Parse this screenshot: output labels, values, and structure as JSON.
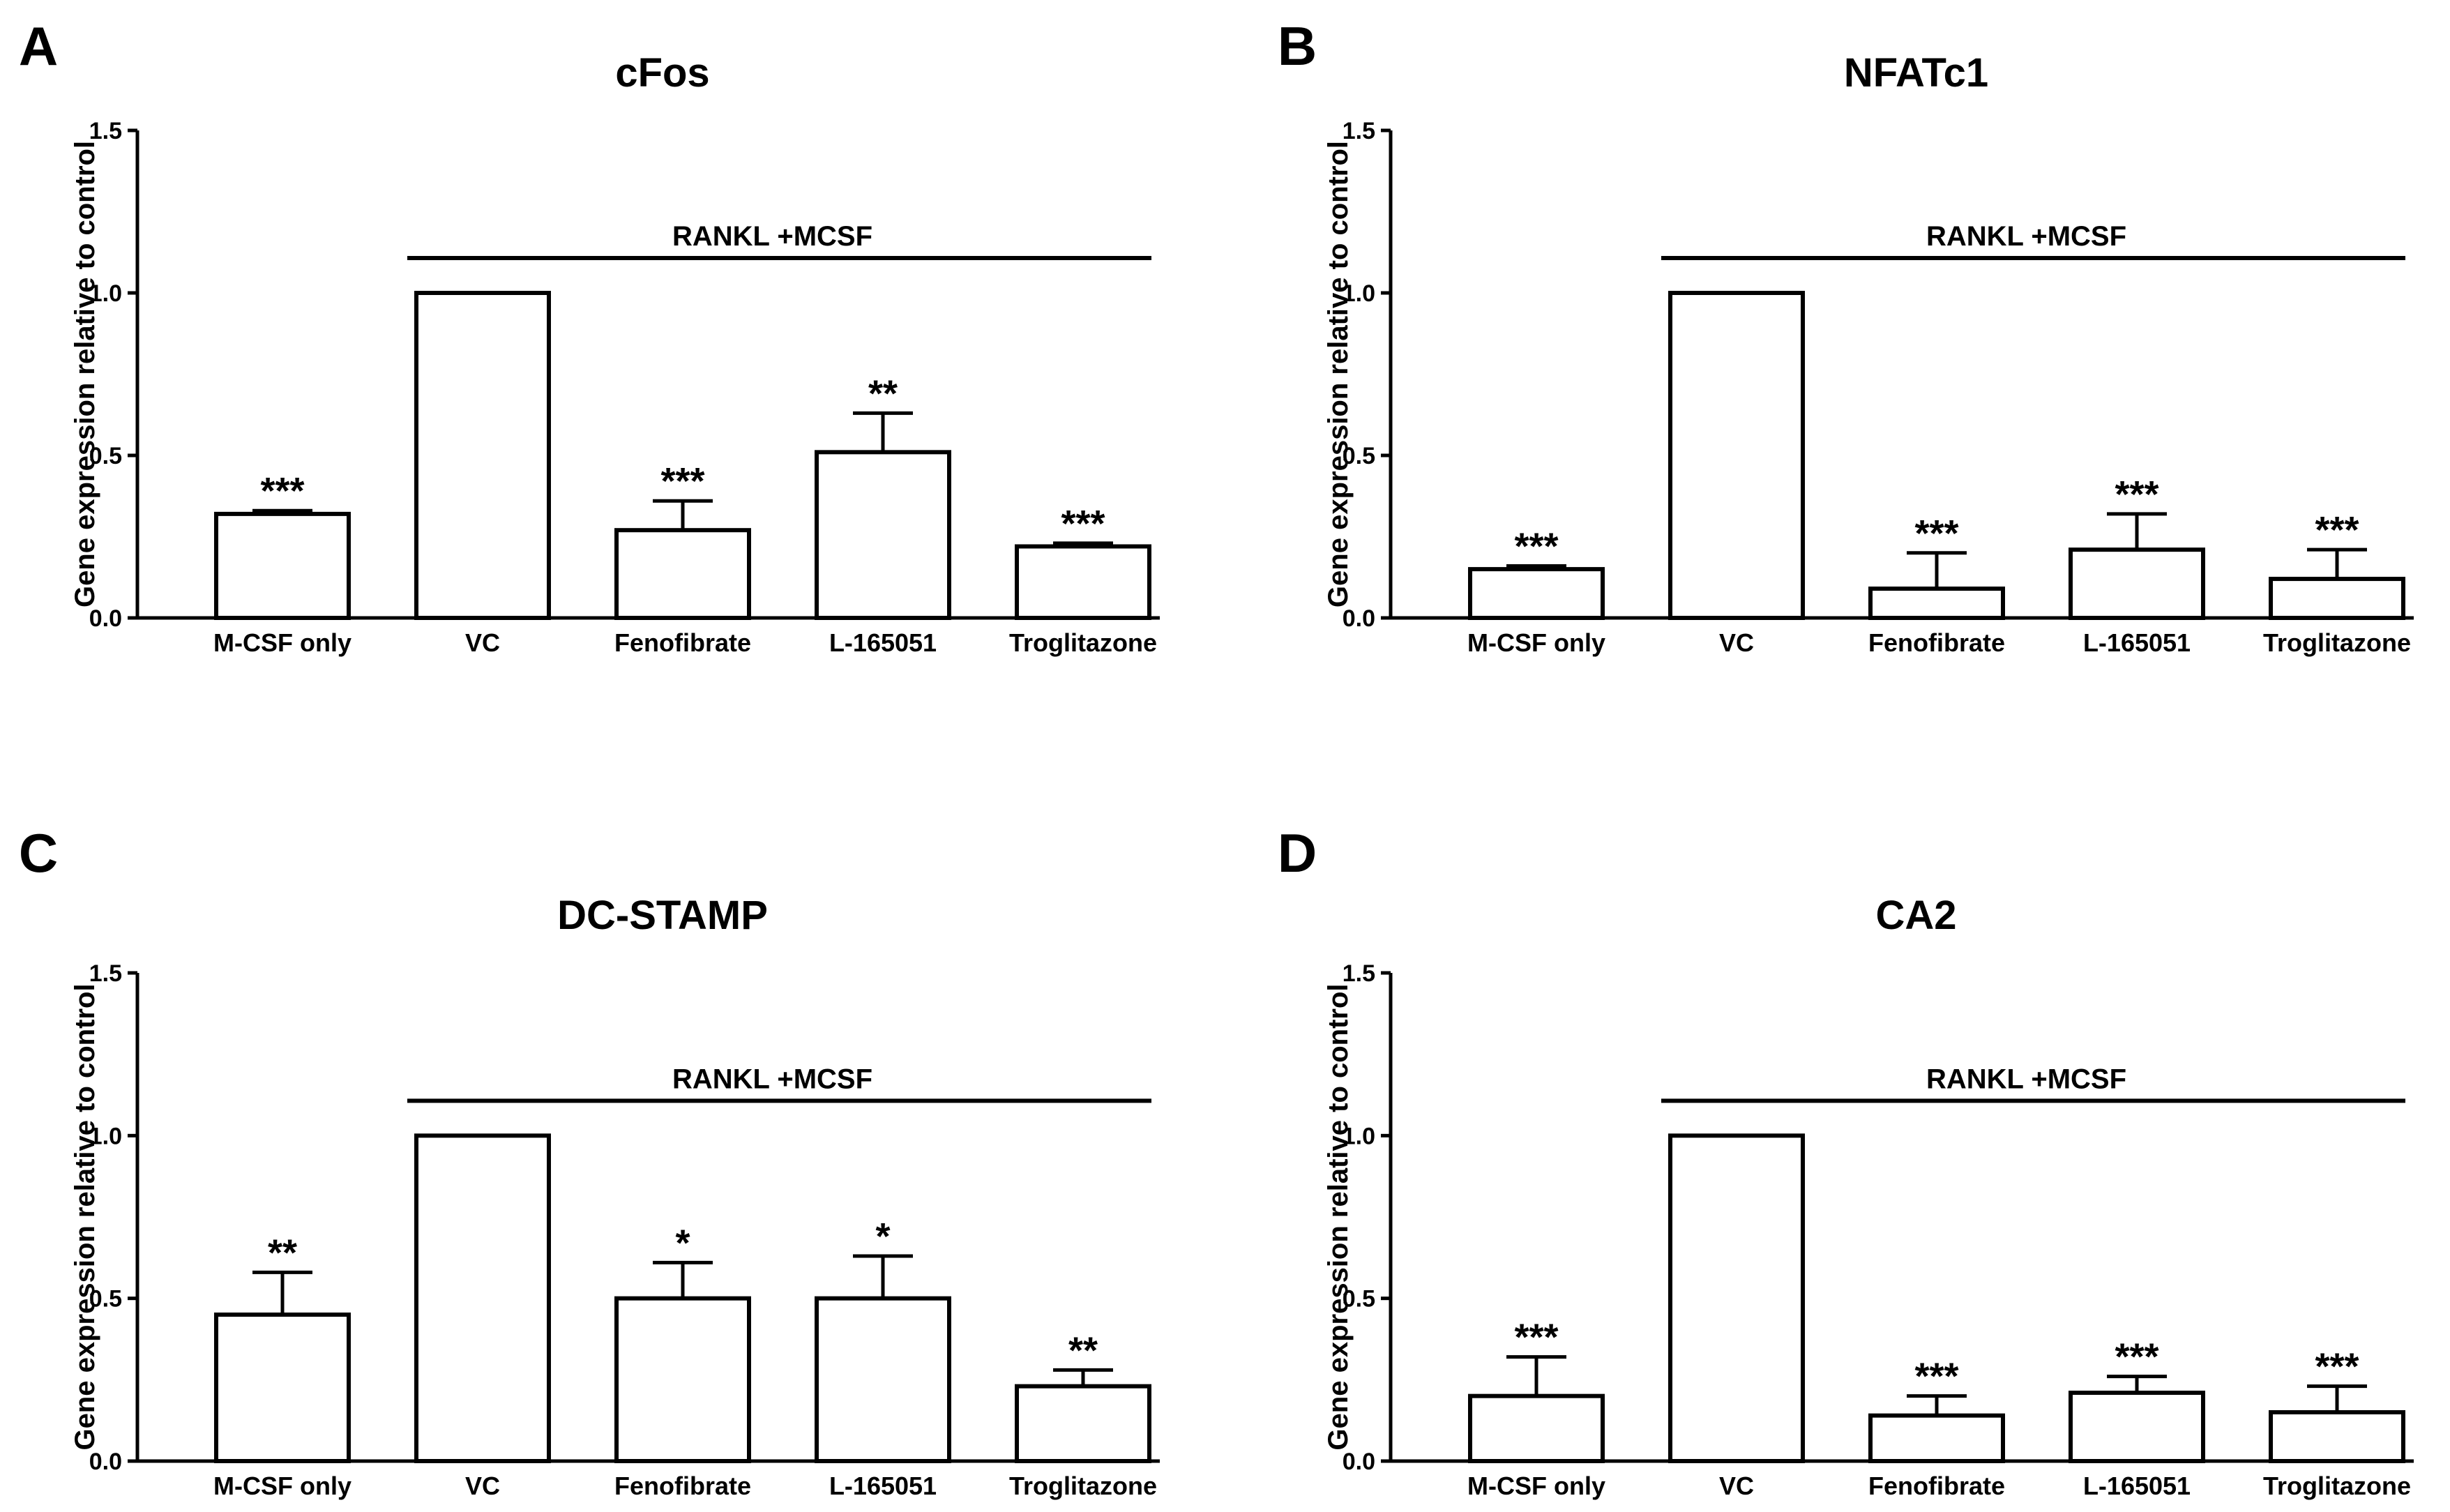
{
  "figure": {
    "y_axis_label": "Gene expression relative to control",
    "bracket_label": "RANKL +MCSF"
  },
  "chart_data": [
    {
      "panel": "A",
      "type": "bar",
      "title": "cFos",
      "xlabel": "",
      "ylabel": "Gene expression relative to control",
      "ylim": [
        0,
        1.5
      ],
      "yticks": [
        "0.0",
        "0.5",
        "1.0",
        "1.5"
      ],
      "categories": [
        "M-CSF only",
        "VC",
        "Fenofibrate",
        "L-165051",
        "Troglitazone"
      ],
      "values": [
        0.32,
        1.0,
        0.27,
        0.51,
        0.22
      ],
      "errors": [
        0.01,
        0.0,
        0.09,
        0.12,
        0.01
      ],
      "significance": [
        "***",
        "",
        "***",
        "**",
        "***"
      ],
      "bracket": {
        "label": "RANKL +MCSF",
        "from": "VC",
        "to": "Troglitazone"
      }
    },
    {
      "panel": "B",
      "type": "bar",
      "title": "NFATc1",
      "xlabel": "",
      "ylabel": "Gene expression relative to control",
      "ylim": [
        0,
        1.5
      ],
      "yticks": [
        "0.0",
        "0.5",
        "1.0",
        "1.5"
      ],
      "categories": [
        "M-CSF only",
        "VC",
        "Fenofibrate",
        "L-165051",
        "Troglitazone"
      ],
      "values": [
        0.15,
        1.0,
        0.09,
        0.21,
        0.12
      ],
      "errors": [
        0.01,
        0.0,
        0.11,
        0.11,
        0.09
      ],
      "significance": [
        "***",
        "",
        "***",
        "***",
        "***"
      ],
      "bracket": {
        "label": "RANKL +MCSF",
        "from": "VC",
        "to": "Troglitazone"
      }
    },
    {
      "panel": "C",
      "type": "bar",
      "title": "DC-STAMP",
      "xlabel": "",
      "ylabel": "Gene expression relative to control",
      "ylim": [
        0,
        1.5
      ],
      "yticks": [
        "0.0",
        "0.5",
        "1.0",
        "1.5"
      ],
      "categories": [
        "M-CSF only",
        "VC",
        "Fenofibrate",
        "L-165051",
        "Troglitazone"
      ],
      "values": [
        0.45,
        1.0,
        0.5,
        0.5,
        0.23
      ],
      "errors": [
        0.13,
        0.0,
        0.11,
        0.13,
        0.05
      ],
      "significance": [
        "**",
        "",
        "*",
        "*",
        "**"
      ],
      "bracket": {
        "label": "RANKL +MCSF",
        "from": "VC",
        "to": "Troglitazone"
      }
    },
    {
      "panel": "D",
      "type": "bar",
      "title": "CA2",
      "xlabel": "",
      "ylabel": "Gene expression relative to control",
      "ylim": [
        0,
        1.5
      ],
      "yticks": [
        "0.0",
        "0.5",
        "1.0",
        "1.5"
      ],
      "categories": [
        "M-CSF only",
        "VC",
        "Fenofibrate",
        "L-165051",
        "Troglitazone"
      ],
      "values": [
        0.2,
        1.0,
        0.14,
        0.21,
        0.15
      ],
      "errors": [
        0.12,
        0.0,
        0.06,
        0.05,
        0.08
      ],
      "significance": [
        "***",
        "",
        "***",
        "***",
        "***"
      ],
      "bracket": {
        "label": "RANKL +MCSF",
        "from": "VC",
        "to": "Troglitazone"
      }
    }
  ]
}
